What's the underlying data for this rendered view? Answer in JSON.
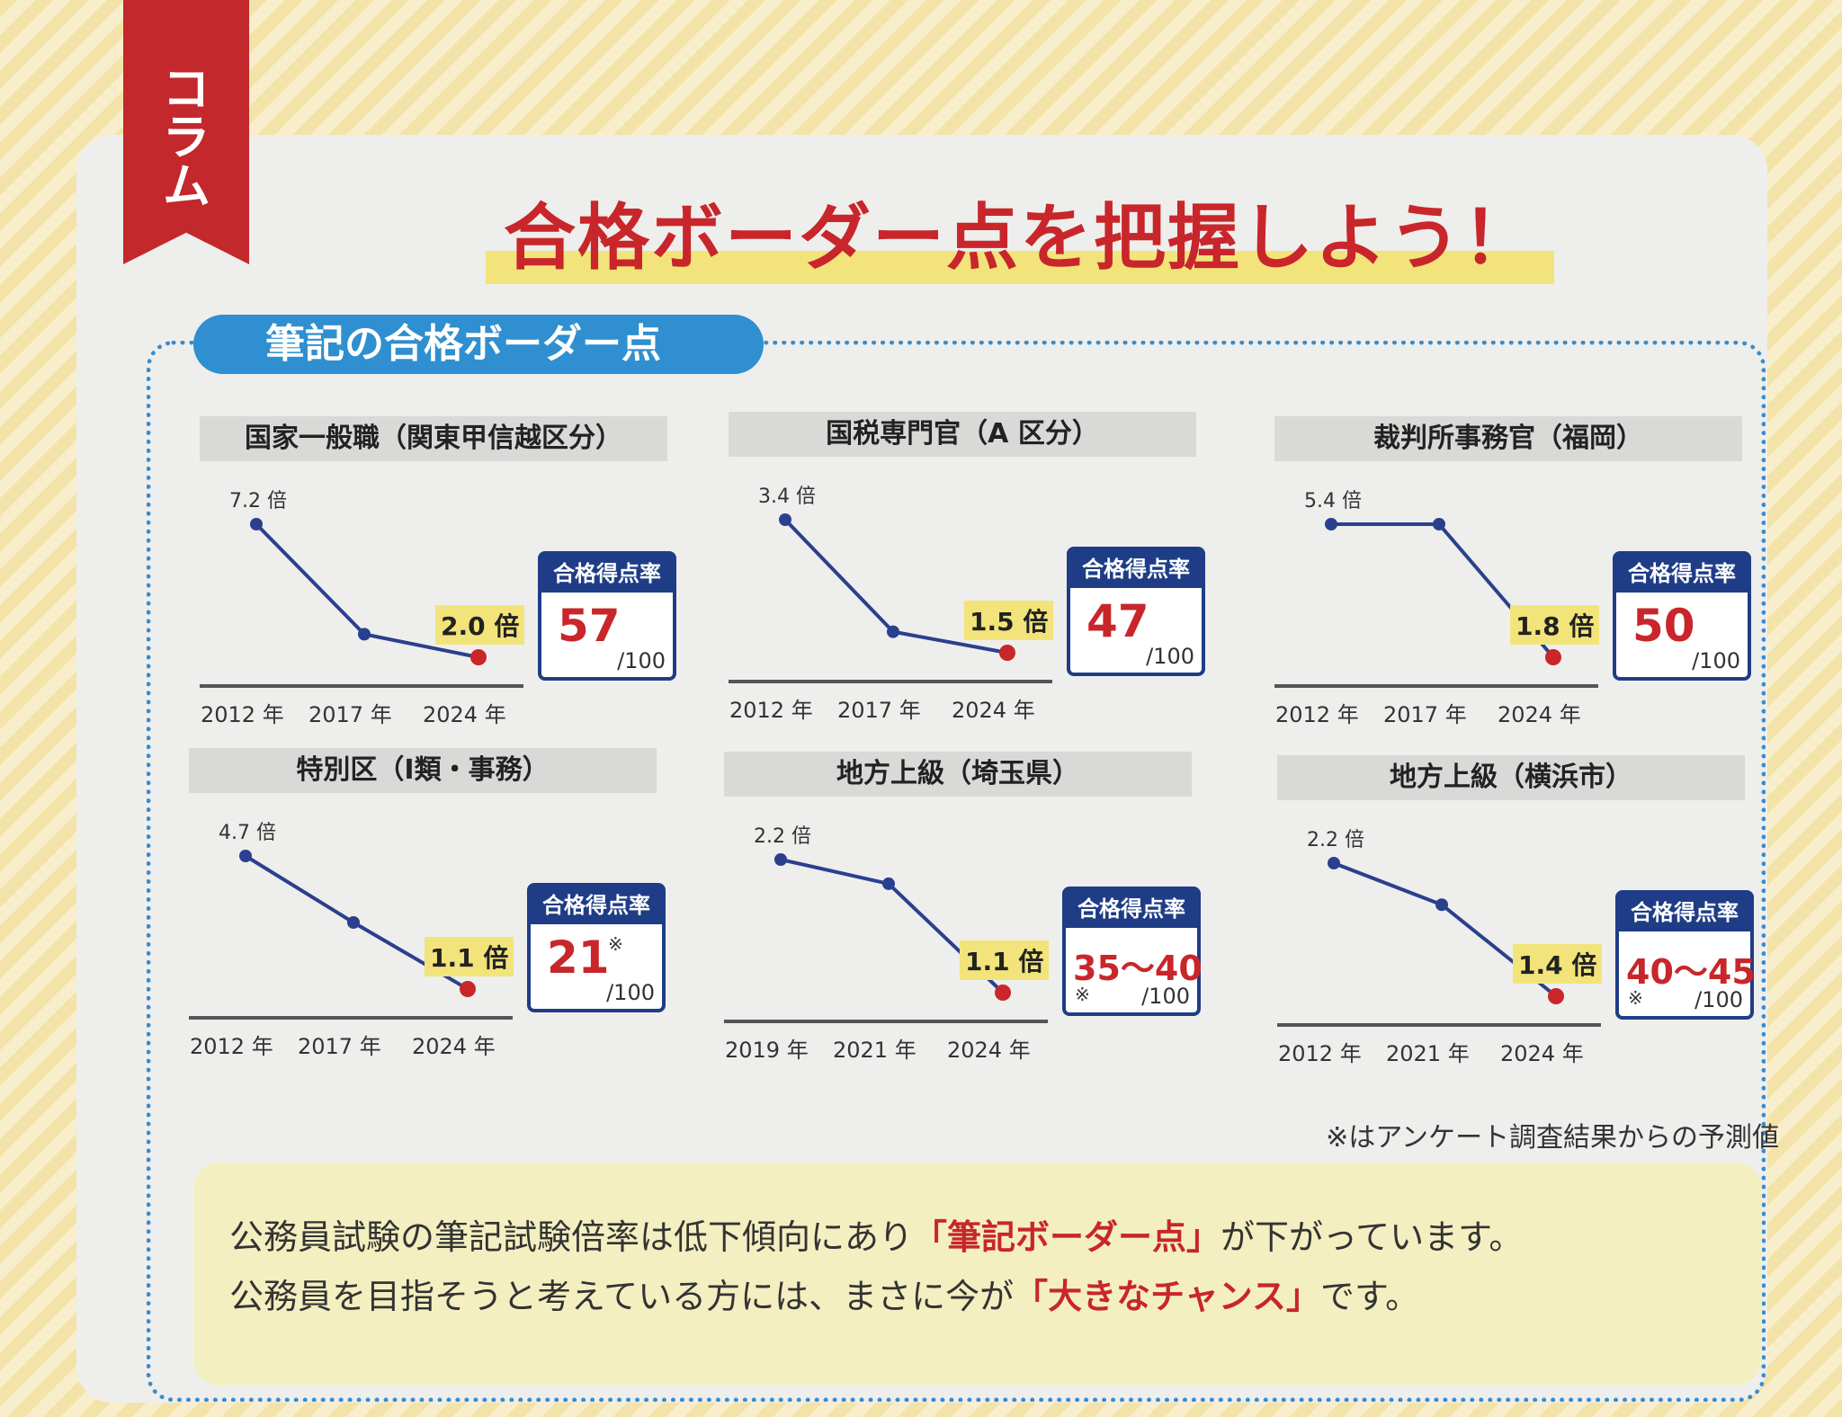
{
  "ribbon": "コラム",
  "title": "合格ボーダー点を把握しよう！",
  "section": "筆記の合格ボーダー点",
  "box_header": "合格得点率",
  "box_denominator": "/100",
  "footnote": "※はアンケート調査結果からの予測値",
  "message": {
    "line1_pre": "公務員試験の筆記試験倍率は低下傾向にあり",
    "line1_em": "「筆記ボーダー点」",
    "line1_post": "が下がっています。",
    "line2_pre": "公務員を目指そうと考えている方には、まさに今が",
    "line2_em": "「大きなチャンス」",
    "line2_post": "です。"
  },
  "colors": {
    "accent_red": "#c8262b",
    "line_blue": "#2b3f8f",
    "box_navy": "#1f3d86",
    "highlight": "#f2e47a"
  },
  "chart_data": [
    {
      "type": "line",
      "title": "国家一般職（関東甲信越区分）",
      "x": [
        "2012 年",
        "2017 年",
        "2024 年"
      ],
      "values": [
        7.2,
        2.9,
        2.0
      ],
      "labels": [
        "7.2 倍",
        "",
        "2.0 倍"
      ],
      "rate": "57",
      "rate_note": ""
    },
    {
      "type": "line",
      "title": "国税専門官（A 区分）",
      "x": [
        "2012 年",
        "2017 年",
        "2024 年"
      ],
      "values": [
        3.4,
        1.8,
        1.5
      ],
      "labels": [
        "3.4 倍",
        "",
        "1.5 倍"
      ],
      "rate": "47",
      "rate_note": ""
    },
    {
      "type": "line",
      "title": "裁判所事務官（福岡）",
      "x": [
        "2012 年",
        "2017 年",
        "2024 年"
      ],
      "values": [
        5.4,
        5.4,
        1.8
      ],
      "labels": [
        "5.4 倍",
        "",
        "1.8 倍"
      ],
      "rate": "50",
      "rate_note": ""
    },
    {
      "type": "line",
      "title": "特別区（Ⅰ類・事務）",
      "x": [
        "2012 年",
        "2017 年",
        "2024 年"
      ],
      "values": [
        4.7,
        2.9,
        1.1
      ],
      "labels": [
        "4.7 倍",
        "",
        "1.1 倍"
      ],
      "rate": "21",
      "rate_note": "※"
    },
    {
      "type": "line",
      "title": "地方上級（埼玉県）",
      "x": [
        "2019 年",
        "2021 年",
        "2024 年"
      ],
      "values": [
        2.2,
        2.0,
        1.1
      ],
      "labels": [
        "2.2 倍",
        "",
        "1.1 倍"
      ],
      "rate": "35〜40",
      "rate_note": "※"
    },
    {
      "type": "line",
      "title": "地方上級（横浜市）",
      "x": [
        "2012 年",
        "2021 年",
        "2024 年"
      ],
      "values": [
        2.2,
        1.95,
        1.4
      ],
      "labels": [
        "2.2 倍",
        "",
        "1.4 倍"
      ],
      "rate": "40〜45",
      "rate_note": "※"
    }
  ]
}
